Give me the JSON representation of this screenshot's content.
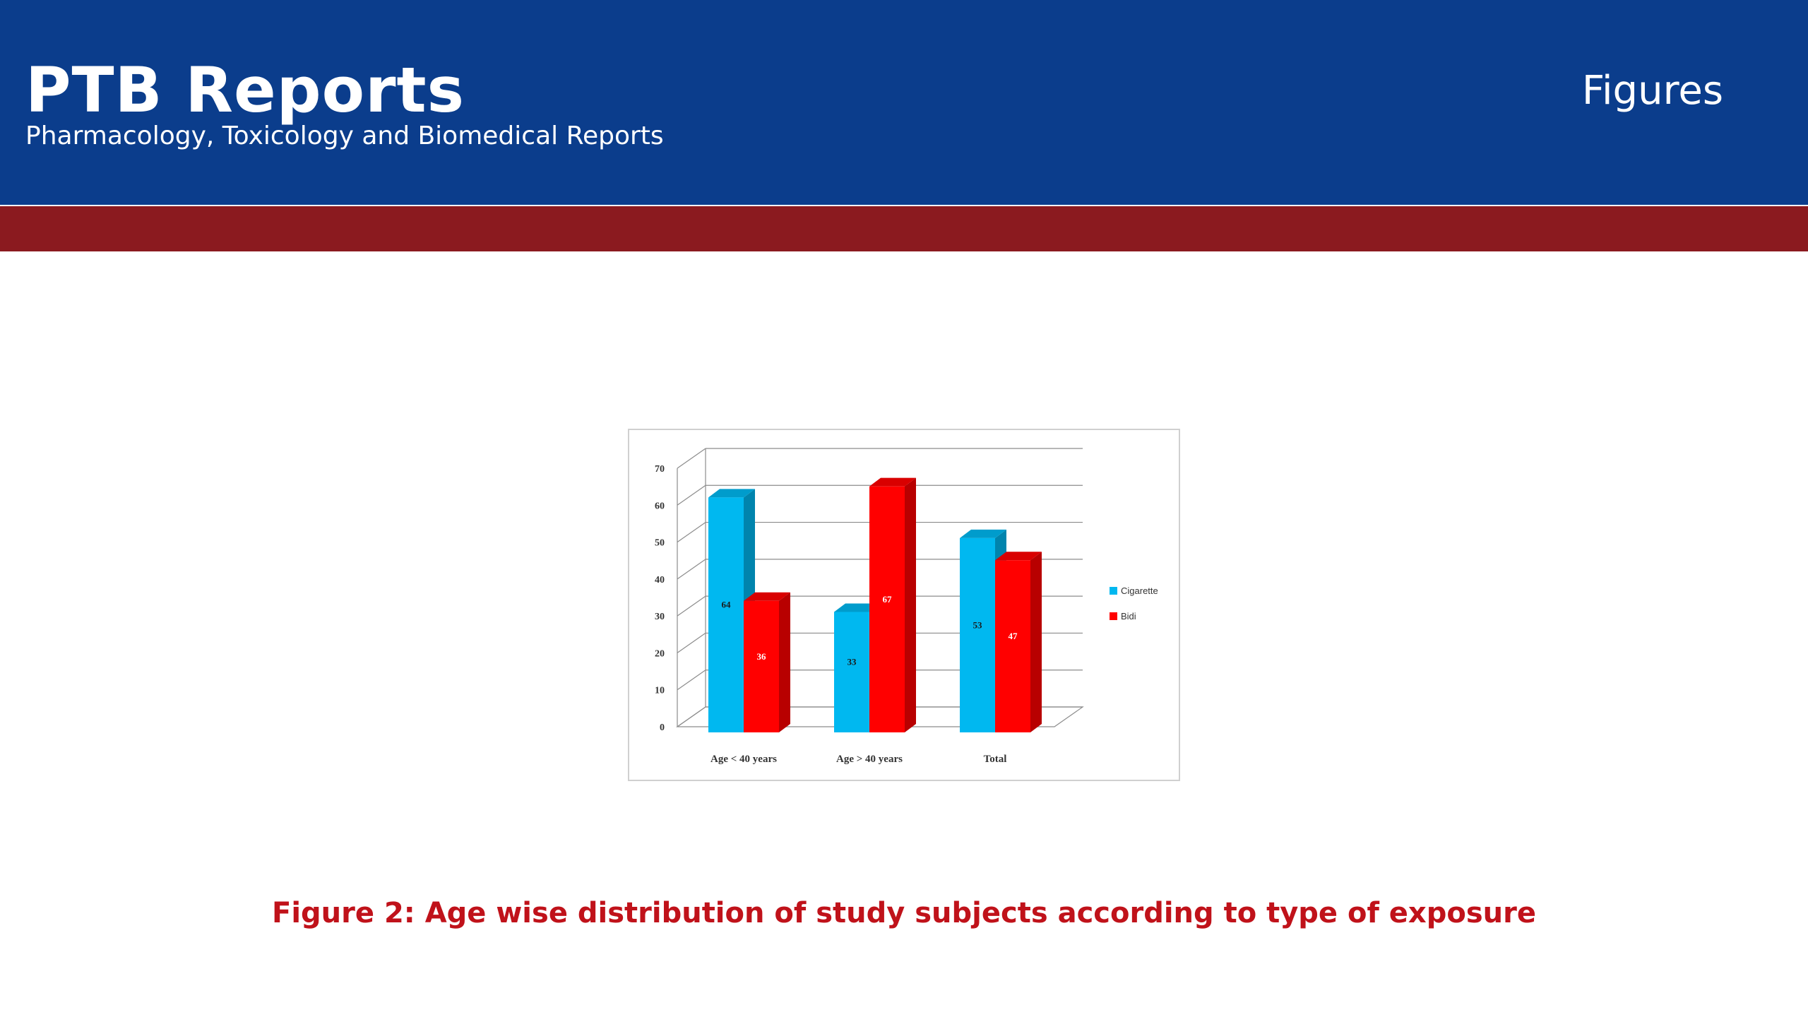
{
  "header": {
    "title": "PTB Reports",
    "subtitle": "Pharmacology, Toxicology and Biomedical Reports",
    "section": "Figures"
  },
  "colors": {
    "header_bg": "#0b3d8c",
    "accent_band": "#8b1a1f",
    "caption": "#c0121a",
    "cigarette": "#00b8f0",
    "bidi": "#ff0000"
  },
  "caption": "Figure 2: Age wise distribution of study subjects according to type of exposure",
  "chart_data": {
    "type": "bar",
    "style": "3d-clustered-column",
    "categories": [
      "Age < 40 years",
      "Age > 40 years",
      "Total"
    ],
    "series": [
      {
        "name": "Cigarette",
        "values": [
          64,
          33,
          53
        ],
        "color": "#00b8f0"
      },
      {
        "name": "Bidi",
        "values": [
          36,
          67,
          47
        ],
        "color": "#ff0000"
      }
    ],
    "data_labels": [
      [
        "64",
        "33",
        "53"
      ],
      [
        "36",
        "67",
        "47"
      ]
    ],
    "y_ticks": [
      "0",
      "10",
      "20",
      "30",
      "40",
      "50",
      "60",
      "70"
    ],
    "ylim": [
      0,
      70
    ],
    "title": "",
    "xlabel": "",
    "ylabel": "",
    "grid": true,
    "legend": "right"
  }
}
